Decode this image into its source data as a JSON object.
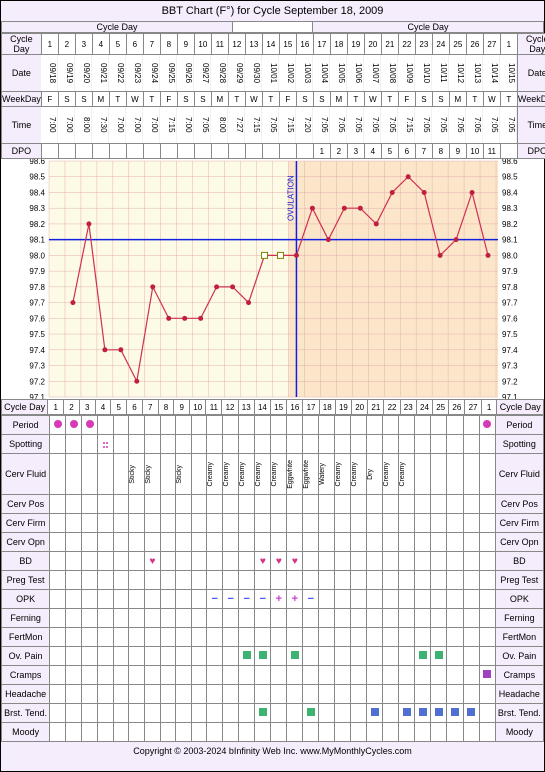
{
  "title": "BBT Chart (F°) for Cycle September 18, 2009",
  "labels": {
    "cycleDay": "Cycle Day",
    "date": "Date",
    "weekday": "WeekDay",
    "time": "Time",
    "dpo": "DPO",
    "period": "Period",
    "spotting": "Spotting",
    "cervFluid": "Cerv Fluid",
    "cervPos": "Cerv Pos",
    "cervFirm": "Cerv Firm",
    "cervOpn": "Cerv Opn",
    "bd": "BD",
    "pregTest": "Preg Test",
    "opk": "OPK",
    "ferning": "Ferning",
    "fertMon": "FertMon",
    "ovPain": "Ov. Pain",
    "cramps": "Cramps",
    "headache": "Headache",
    "brstTend": "Brst. Tend.",
    "moody": "Moody"
  },
  "days": [
    1,
    2,
    3,
    4,
    5,
    6,
    7,
    8,
    9,
    10,
    11,
    12,
    13,
    14,
    15,
    16,
    17,
    18,
    19,
    20,
    21,
    22,
    23,
    24,
    25,
    26,
    27,
    1
  ],
  "dates": [
    "09/18",
    "09/19",
    "09/20",
    "09/21",
    "09/22",
    "09/23",
    "09/24",
    "09/25",
    "09/26",
    "09/27",
    "09/28",
    "09/29",
    "09/30",
    "10/01",
    "10/02",
    "10/03",
    "10/04",
    "10/05",
    "10/06",
    "10/07",
    "10/08",
    "10/09",
    "10/10",
    "10/11",
    "10/12",
    "10/13",
    "10/14",
    "10/15"
  ],
  "weekdays": [
    "F",
    "S",
    "S",
    "M",
    "T",
    "W",
    "T",
    "F",
    "S",
    "S",
    "M",
    "T",
    "W",
    "T",
    "F",
    "S",
    "S",
    "M",
    "T",
    "W",
    "T",
    "F",
    "S",
    "S",
    "M",
    "T",
    "W",
    "T"
  ],
  "times": [
    "7:00",
    "7:00",
    "8:00",
    "7:30",
    "7:00",
    "7:00",
    "7:00",
    "7:15",
    "7:00",
    "7:05",
    "8:00",
    "7:27",
    "7:15",
    "7:05",
    "7:15",
    "7:20",
    "7:05",
    "7:05",
    "7:05",
    "7:05",
    "7:05",
    "7:15",
    "7:05",
    "7:05",
    "7:05",
    "7:05",
    "7:05",
    "7:05"
  ],
  "dpo": [
    "",
    "",
    "",
    "",
    "",
    "",
    "",
    "",
    "",
    "",
    "",
    "",
    "",
    "",
    "",
    "",
    "1",
    "2",
    "3",
    "4",
    "5",
    "6",
    "7",
    "8",
    "9",
    "10",
    "11",
    ""
  ],
  "ovulation_day_index": 15,
  "coverline": 98.1,
  "ovulation_label": "OVULATION",
  "ylabels": [
    98.6,
    98.5,
    98.4,
    98.3,
    98.2,
    98.1,
    98.0,
    97.9,
    97.8,
    97.7,
    97.6,
    97.5,
    97.4,
    97.3,
    97.2,
    97.1
  ],
  "temps": [
    null,
    97.7,
    98.2,
    97.4,
    97.4,
    97.2,
    97.8,
    97.6,
    97.6,
    97.6,
    97.8,
    97.8,
    97.7,
    98.0,
    98.0,
    98.0,
    98.3,
    98.1,
    98.3,
    98.3,
    98.2,
    98.4,
    98.5,
    98.4,
    98.0,
    98.1,
    98.4,
    98.0
  ],
  "chart_colors": {
    "bg_pre": "#fdfbe5",
    "bg_post": "#fce6c9",
    "grid": "#e5b0b0",
    "line": "#d03050",
    "point": "#c02040",
    "coverline": "#1020e0",
    "ovline": "#1020e0",
    "specialpoint_border": "#808000"
  },
  "cycleDayRow2": [
    1,
    2,
    3,
    4,
    5,
    6,
    7,
    8,
    9,
    10,
    11,
    12,
    13,
    14,
    15,
    16,
    17,
    18,
    19,
    20,
    21,
    22,
    23,
    24,
    25,
    26,
    27,
    1
  ],
  "period": [
    true,
    true,
    true,
    false,
    false,
    false,
    false,
    false,
    false,
    false,
    false,
    false,
    false,
    false,
    false,
    false,
    false,
    false,
    false,
    false,
    false,
    false,
    false,
    false,
    false,
    false,
    false,
    true
  ],
  "spotting_day": 3,
  "cervFluid": [
    "",
    "",
    "",
    "",
    "",
    "Sticky",
    "Sticky",
    "",
    "Sticky",
    "",
    "Creamy",
    "Creamy",
    "Creamy",
    "Creamy",
    "Creamy",
    "Eggwhite",
    "Eggwhite",
    "Watery",
    "Creamy",
    "Creamy",
    "Dry",
    "Creamy",
    "Creamy",
    "",
    "",
    "",
    "",
    ""
  ],
  "bd": [
    false,
    false,
    false,
    false,
    false,
    false,
    true,
    false,
    false,
    false,
    false,
    false,
    false,
    true,
    true,
    true,
    false,
    false,
    false,
    false,
    false,
    false,
    false,
    false,
    false,
    false,
    false,
    false
  ],
  "opk": [
    "",
    "",
    "",
    "",
    "",
    "",
    "",
    "",
    "",
    "",
    "−",
    "−",
    "−",
    "−",
    "+",
    "+",
    "−",
    "",
    "",
    "",
    "",
    "",
    "",
    "",
    "",
    "",
    "",
    ""
  ],
  "ovPain": [
    false,
    false,
    false,
    false,
    false,
    false,
    false,
    false,
    false,
    false,
    false,
    false,
    true,
    true,
    false,
    true,
    false,
    false,
    false,
    false,
    false,
    false,
    false,
    true,
    true,
    false,
    false,
    false
  ],
  "cramps": [
    false,
    false,
    false,
    false,
    false,
    false,
    false,
    false,
    false,
    false,
    false,
    false,
    false,
    false,
    false,
    false,
    false,
    false,
    false,
    false,
    false,
    false,
    false,
    false,
    false,
    false,
    false,
    true
  ],
  "brstTend": [
    "",
    "",
    "",
    "",
    "",
    "",
    "",
    "",
    "",
    "",
    "",
    "",
    "",
    "green",
    "",
    "",
    "green",
    "",
    "",
    "",
    "blue",
    "",
    "blue",
    "blue",
    "blue",
    "blue",
    "blue",
    ""
  ],
  "copyright": "Copyright © 2003-2024 bInfinity Web Inc.    www.MyMonthlyCycles.com"
}
